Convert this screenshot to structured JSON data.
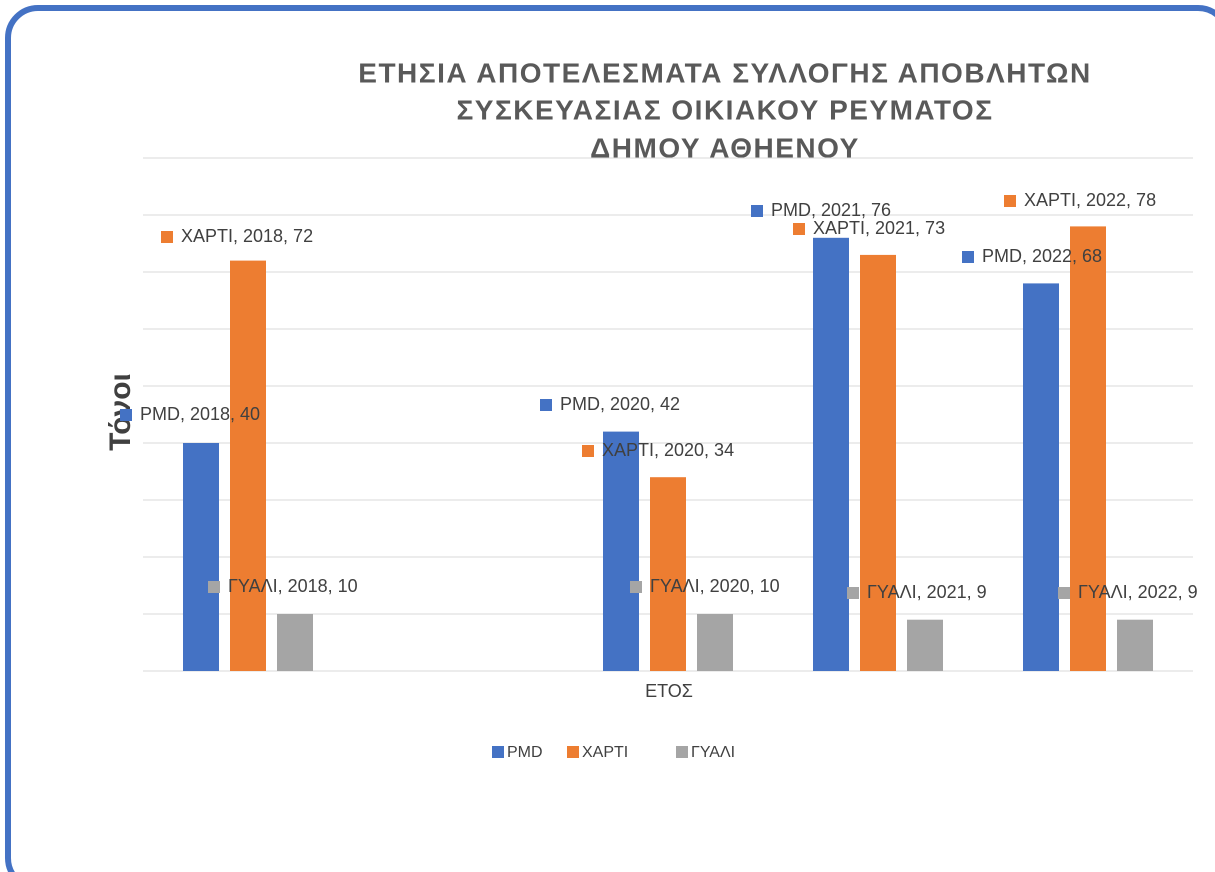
{
  "chart_data": {
    "type": "bar",
    "title": [
      "ΕΤΗΣΙΑ ΑΠΟΤΕΛΕΣΜΑΤΑ ΣΥΛΛΟΓΗΣ ΑΠΟΒΛΗΤΩΝ",
      "ΣΥΣΚΕΥΑΣΙΑΣ ΟΙΚΙΑΚΟΥ ΡΕΥΜΑΤΟΣ",
      "ΔΗΜΟΥ ΑΘΗΕΝΟΥ"
    ],
    "x_label": "ΕΤΟΣ",
    "y_label": "Τόνοι",
    "series": [
      {
        "name": "PMD",
        "color": "#4472c4",
        "values": [
          40,
          null,
          42,
          76,
          68
        ],
        "value_labels": [
          "PMD, 2018, 40",
          null,
          "PMD, 2020, 42",
          "PMD, 2021, 76",
          "PMD, 2022, 68"
        ]
      },
      {
        "name": "ΧΑΡΤΙ",
        "color": "#ed7d31",
        "values": [
          72,
          null,
          34,
          73,
          78
        ],
        "value_labels": [
          "ΧΑΡΤΙ, 2018, 72",
          null,
          "ΧΑΡΤΙ, 2020, 34",
          "ΧΑΡΤΙ, 2021, 73",
          "ΧΑΡΤΙ, 2022, 78"
        ]
      },
      {
        "name": "ΓΥΑΛΙ",
        "color": "#a5a5a5",
        "values": [
          10,
          null,
          10,
          9,
          9
        ],
        "value_labels": [
          "ΓΥΑΛΙ, 2018, 10",
          null,
          "ΓΥΑΛΙ, 2020, 10",
          "ΓΥΑΛΙ, 2021, 9",
          "ΓΥΑΛΙ, 2022, 9"
        ]
      }
    ],
    "ylim": [
      0,
      90
    ],
    "yticks": [
      0,
      10,
      20,
      30,
      40,
      50,
      60,
      70,
      80,
      90
    ],
    "grid": true,
    "legend": "bottom"
  }
}
